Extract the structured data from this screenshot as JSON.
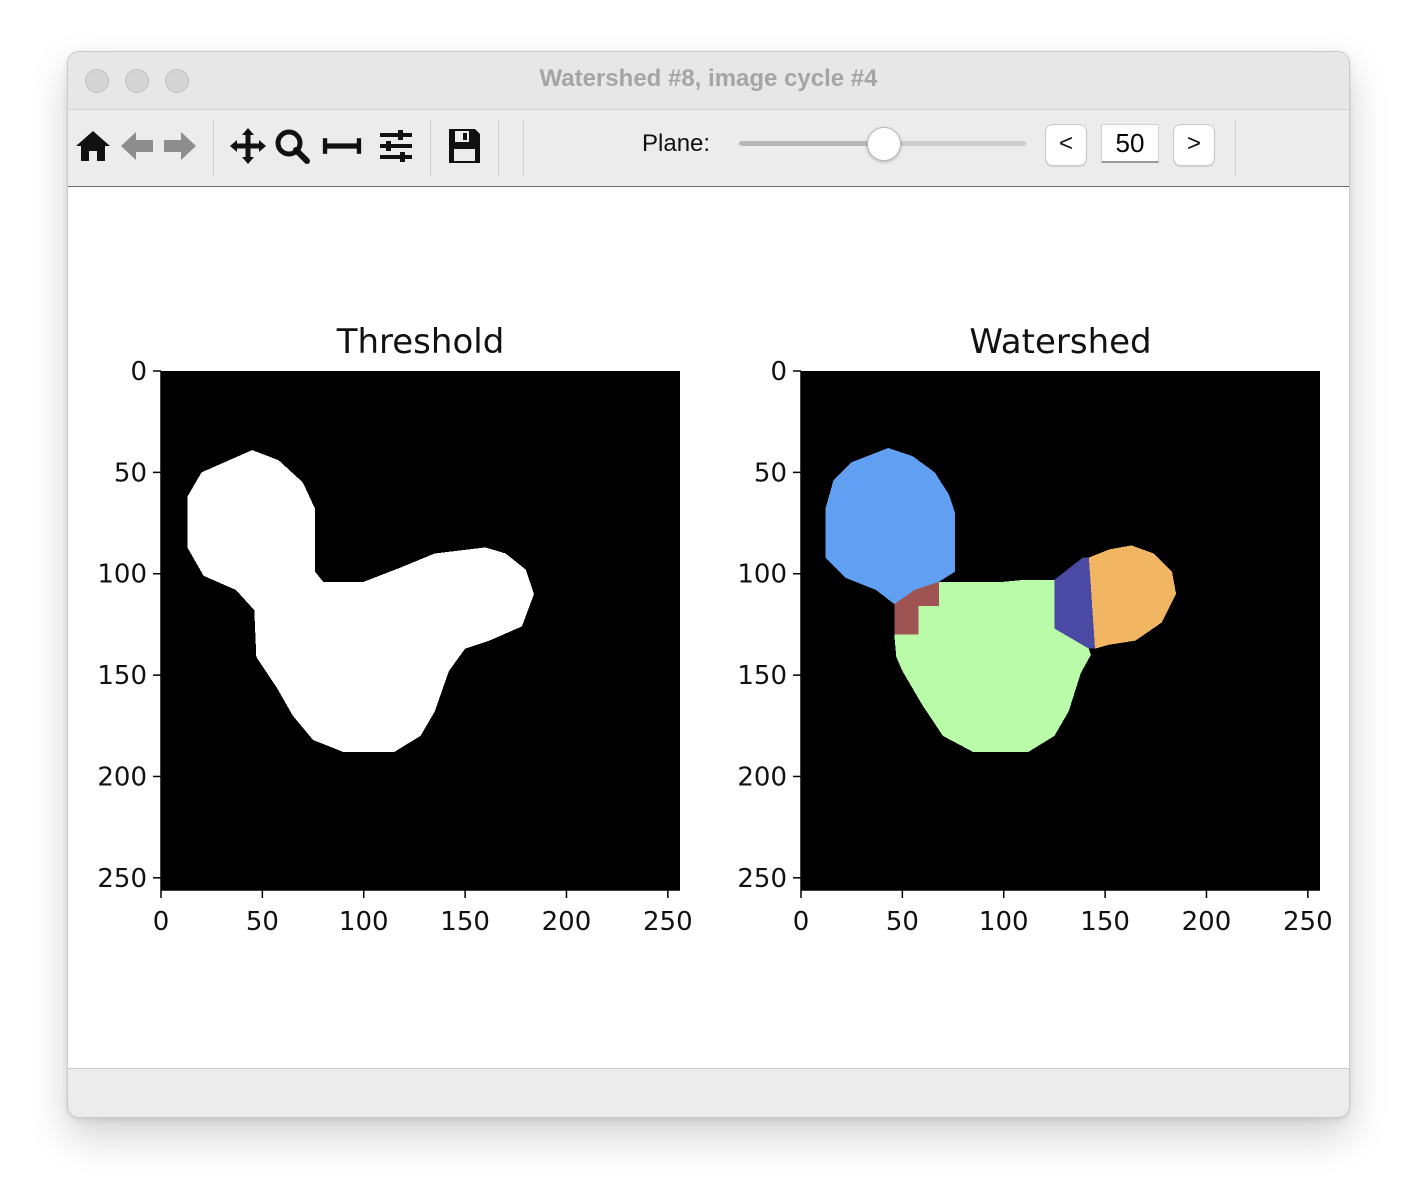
{
  "window": {
    "title": "Watershed #8, image cycle #4"
  },
  "toolbar": {
    "icons": [
      "home-icon",
      "back-arrow-icon",
      "forward-arrow-icon",
      "pan-icon",
      "zoom-icon",
      "subplot-adjust-icon",
      "configure-icon",
      "save-icon"
    ],
    "plane_label": "Plane:",
    "plane_value": "50",
    "prev_label": "<",
    "next_label": ">",
    "slider_fraction": 0.5
  },
  "chart_data": [
    {
      "type": "image",
      "title": "Threshold",
      "xlim": [
        0,
        256
      ],
      "ylim": [
        256,
        0
      ],
      "xticks": [
        0,
        50,
        100,
        150,
        200,
        250
      ],
      "yticks": [
        0,
        50,
        100,
        150,
        200,
        250
      ],
      "background": "#000000",
      "regions": [
        {
          "label": "foreground",
          "color": "#ffffff",
          "polygon": [
            [
              45,
              39
            ],
            [
              58,
              44
            ],
            [
              70,
              55
            ],
            [
              76,
              68
            ],
            [
              76,
              99
            ],
            [
              80,
              104
            ],
            [
              90,
              104
            ],
            [
              100,
              104
            ],
            [
              118,
              97
            ],
            [
              135,
              90
            ],
            [
              160,
              87
            ],
            [
              170,
              90
            ],
            [
              180,
              98
            ],
            [
              184,
              110
            ],
            [
              178,
              126
            ],
            [
              162,
              133
            ],
            [
              150,
              137
            ],
            [
              142,
              148
            ],
            [
              135,
              168
            ],
            [
              128,
              180
            ],
            [
              115,
              188
            ],
            [
              90,
              188
            ],
            [
              75,
              182
            ],
            [
              65,
              170
            ],
            [
              57,
              156
            ],
            [
              47,
              141
            ],
            [
              46,
              118
            ],
            [
              37,
              108
            ],
            [
              21,
              101
            ],
            [
              13,
              87
            ],
            [
              13,
              62
            ],
            [
              20,
              50
            ]
          ]
        }
      ]
    },
    {
      "type": "image",
      "title": "Watershed",
      "xlim": [
        0,
        256
      ],
      "ylim": [
        256,
        0
      ],
      "xticks": [
        0,
        50,
        100,
        150,
        200,
        250
      ],
      "yticks": [
        0,
        50,
        100,
        150,
        200,
        250
      ],
      "background": "#000000",
      "regions": [
        {
          "label": "1",
          "color": "#609ff2",
          "polygon": [
            [
              43,
              38
            ],
            [
              55,
              42
            ],
            [
              66,
              50
            ],
            [
              73,
              61
            ],
            [
              76,
              70
            ],
            [
              76,
              99
            ],
            [
              68,
              104
            ],
            [
              56,
              108
            ],
            [
              46,
              115
            ],
            [
              37,
              108
            ],
            [
              22,
              102
            ],
            [
              12,
              92
            ],
            [
              12,
              68
            ],
            [
              16,
              54
            ],
            [
              25,
              45
            ]
          ]
        },
        {
          "label": "2",
          "color": "#a05353",
          "polygon": [
            [
              46,
              115
            ],
            [
              56,
              108
            ],
            [
              68,
              104
            ],
            [
              68,
              116
            ],
            [
              58,
              116
            ],
            [
              58,
              130
            ],
            [
              46,
              130
            ]
          ]
        },
        {
          "label": "3",
          "color": "#b9fba8",
          "polygon": [
            [
              58,
              130
            ],
            [
              58,
              116
            ],
            [
              68,
              116
            ],
            [
              68,
              104
            ],
            [
              80,
              104
            ],
            [
              100,
              104
            ],
            [
              110,
              103
            ],
            [
              125,
              103
            ],
            [
              125,
              127
            ],
            [
              142,
              137
            ],
            [
              143,
              140
            ],
            [
              138,
              149
            ],
            [
              132,
              168
            ],
            [
              125,
              180
            ],
            [
              112,
              188
            ],
            [
              85,
              188
            ],
            [
              70,
              180
            ],
            [
              60,
              165
            ],
            [
              50,
              148
            ],
            [
              47,
              141
            ],
            [
              46,
              130
            ]
          ]
        },
        {
          "label": "4",
          "color": "#4a4aa4",
          "polygon": [
            [
              125,
              103
            ],
            [
              139,
              92
            ],
            [
              142,
              92
            ],
            [
              145,
              137
            ],
            [
              142,
              137
            ],
            [
              125,
              127
            ]
          ]
        },
        {
          "label": "5",
          "color": "#f2b561",
          "polygon": [
            [
              142,
              92
            ],
            [
              152,
              88
            ],
            [
              163,
              86
            ],
            [
              174,
              90
            ],
            [
              183,
              99
            ],
            [
              185,
              110
            ],
            [
              178,
              124
            ],
            [
              165,
              133
            ],
            [
              152,
              135
            ],
            [
              145,
              137
            ]
          ]
        }
      ]
    }
  ]
}
